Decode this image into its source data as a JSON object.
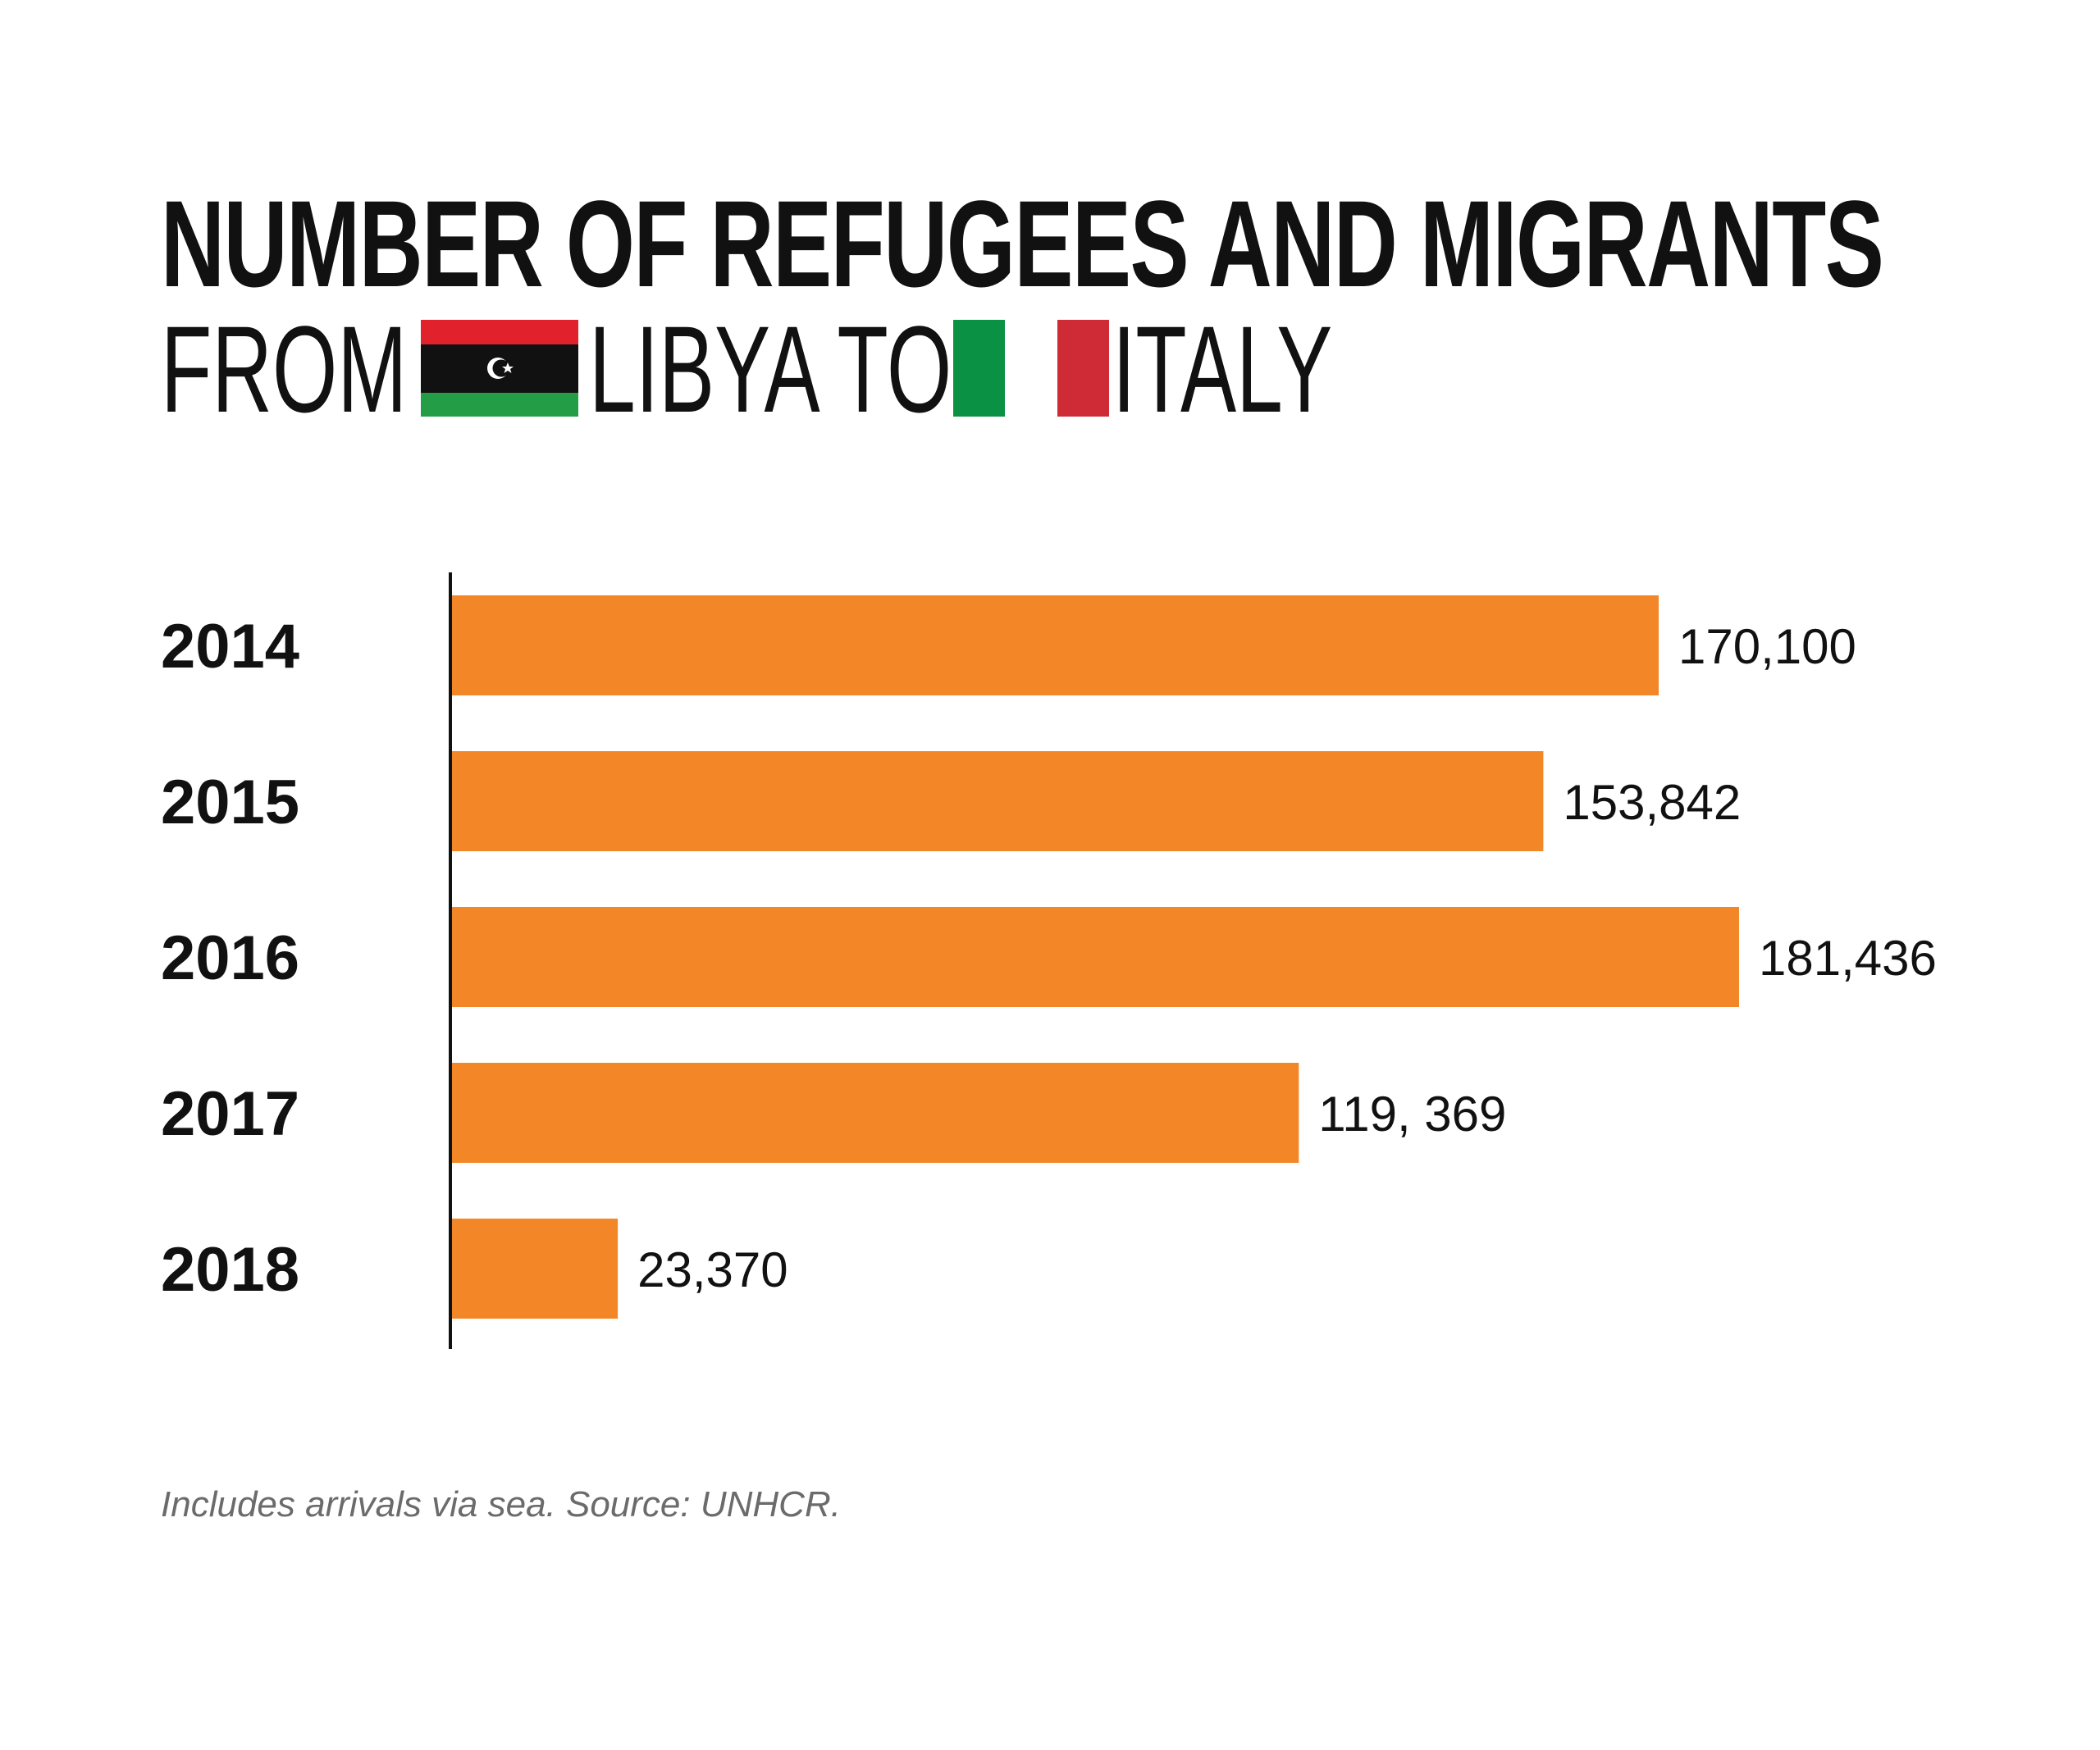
{
  "title": {
    "line1": "NUMBER OF REFUGEES AND MIGRANTS",
    "from": "FROM",
    "libya": "LIBYA TO",
    "italy": "ITALY"
  },
  "footnote": "Includes arrivals via sea. Source: UNHCR.",
  "colors": {
    "bar": "#f38627",
    "text": "#111111",
    "axis": "#111111",
    "libya_red": "#e1212b",
    "libya_black": "#111111",
    "libya_green": "#239e46",
    "italy_green": "#0a9143",
    "italy_white": "#ffffff",
    "italy_red": "#cf2b37"
  },
  "icons": {
    "libya_flag": "libya-flag-icon",
    "italy_flag": "italy-flag-icon"
  },
  "chart_data": {
    "type": "bar",
    "orientation": "horizontal",
    "title": "NUMBER OF REFUGEES AND MIGRANTS FROM LIBYA TO ITALY",
    "categories": [
      "2014",
      "2015",
      "2016",
      "2017",
      "2018"
    ],
    "values": [
      170100,
      153842,
      181436,
      119369,
      23370
    ],
    "value_labels": [
      "170,100",
      "153,842",
      "181,436",
      "119, 369",
      "23,370"
    ],
    "xlim": [
      0,
      181436
    ],
    "grid": false,
    "legend": "none"
  }
}
